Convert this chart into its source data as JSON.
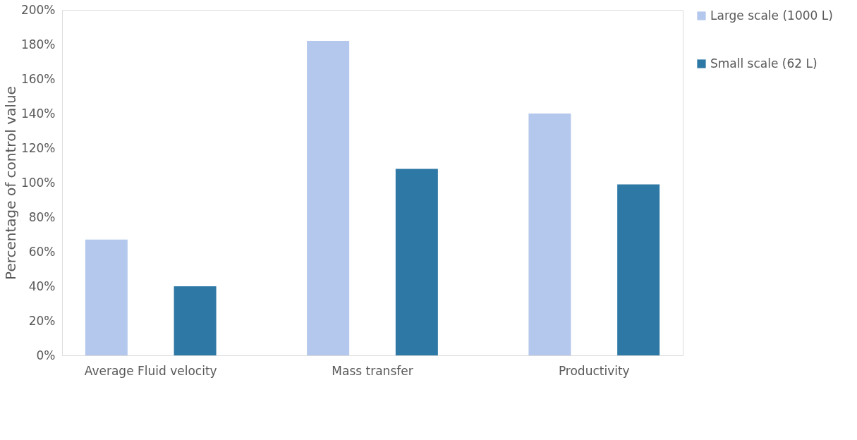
{
  "chart_data": {
    "type": "bar",
    "ylabel": "Percentage of control value",
    "categories": [
      "Average Fluid velocity",
      "Mass transfer",
      "Productivity"
    ],
    "series": [
      {
        "name": "Large scale (1000 L)",
        "color": "#b4c7ec",
        "values": [
          67,
          182,
          140
        ]
      },
      {
        "name": "Small scale (62 L)",
        "color": "#2e78a6",
        "values": [
          40,
          108,
          99
        ]
      }
    ],
    "ylim": [
      0,
      200
    ],
    "yticks": [
      {
        "value": 0,
        "label": "0%"
      },
      {
        "value": 20,
        "label": "20%"
      },
      {
        "value": 40,
        "label": "40%"
      },
      {
        "value": 60,
        "label": "60%"
      },
      {
        "value": 80,
        "label": "80%"
      },
      {
        "value": 100,
        "label": "100%"
      },
      {
        "value": 120,
        "label": "120%"
      },
      {
        "value": 140,
        "label": "140%"
      },
      {
        "value": 160,
        "label": "160%"
      },
      {
        "value": 180,
        "label": "180%"
      },
      {
        "value": 200,
        "label": "200%"
      }
    ],
    "grid": false,
    "legend": "right"
  }
}
